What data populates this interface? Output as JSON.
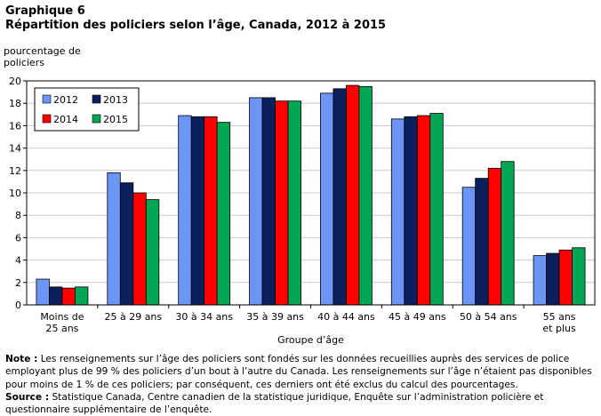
{
  "header": {
    "graph_number": "Graphique  6",
    "title": "Répartition  des policiers selon l’âge, Canada, 2012 à 2015"
  },
  "notes": {
    "note_label": "Note :",
    "note_text": "Les renseignements sur l’âge des policiers sont fondés sur les données recueillies auprès des services de police employant plus de 99 % des policiers d’un bout à l’autre du Canada. Les renseignements sur l’âge n’étaient pas disponibles pour moins de 1 % de ces policiers; par conséquent, ces derniers ont été exclus du calcul des pourcentages.",
    "source_label": "Source :",
    "source_text": "Statistique Canada, Centre canadien de la statistique juridique, Enquête sur l’administration policière et questionnaire supplémentaire de l’enquête."
  },
  "chart_data": {
    "type": "bar",
    "ylabel_lines": [
      "pourcentage de",
      "policiers"
    ],
    "xlabel": "Groupe d’âge",
    "ylim": [
      0,
      20
    ],
    "yticks": [
      0,
      2,
      4,
      6,
      8,
      10,
      12,
      14,
      16,
      18,
      20
    ],
    "grid": true,
    "legend_position": "top-left",
    "categories": [
      [
        "Moins de",
        "25 ans"
      ],
      [
        "25 à 29 ans"
      ],
      [
        "30 à 34 ans"
      ],
      [
        "35 à 39 ans"
      ],
      [
        "40 à 44 ans"
      ],
      [
        "45 à 49 ans"
      ],
      [
        "50 à 54 ans"
      ],
      [
        "55 ans",
        "et plus"
      ]
    ],
    "series": [
      {
        "name": "2012",
        "color": "#6d95f5",
        "values": [
          2.3,
          11.8,
          16.9,
          18.5,
          18.9,
          16.6,
          10.5,
          4.4
        ]
      },
      {
        "name": "2013",
        "color": "#0b1f5c",
        "values": [
          1.6,
          10.9,
          16.8,
          18.5,
          19.3,
          16.8,
          11.3,
          4.6
        ]
      },
      {
        "name": "2014",
        "color": "#ff0000",
        "values": [
          1.5,
          10.0,
          16.8,
          18.2,
          19.6,
          16.9,
          12.2,
          4.9
        ]
      },
      {
        "name": "2015",
        "color": "#00a651",
        "values": [
          1.6,
          9.4,
          16.3,
          18.2,
          19.5,
          17.1,
          12.8,
          5.1
        ]
      }
    ]
  }
}
